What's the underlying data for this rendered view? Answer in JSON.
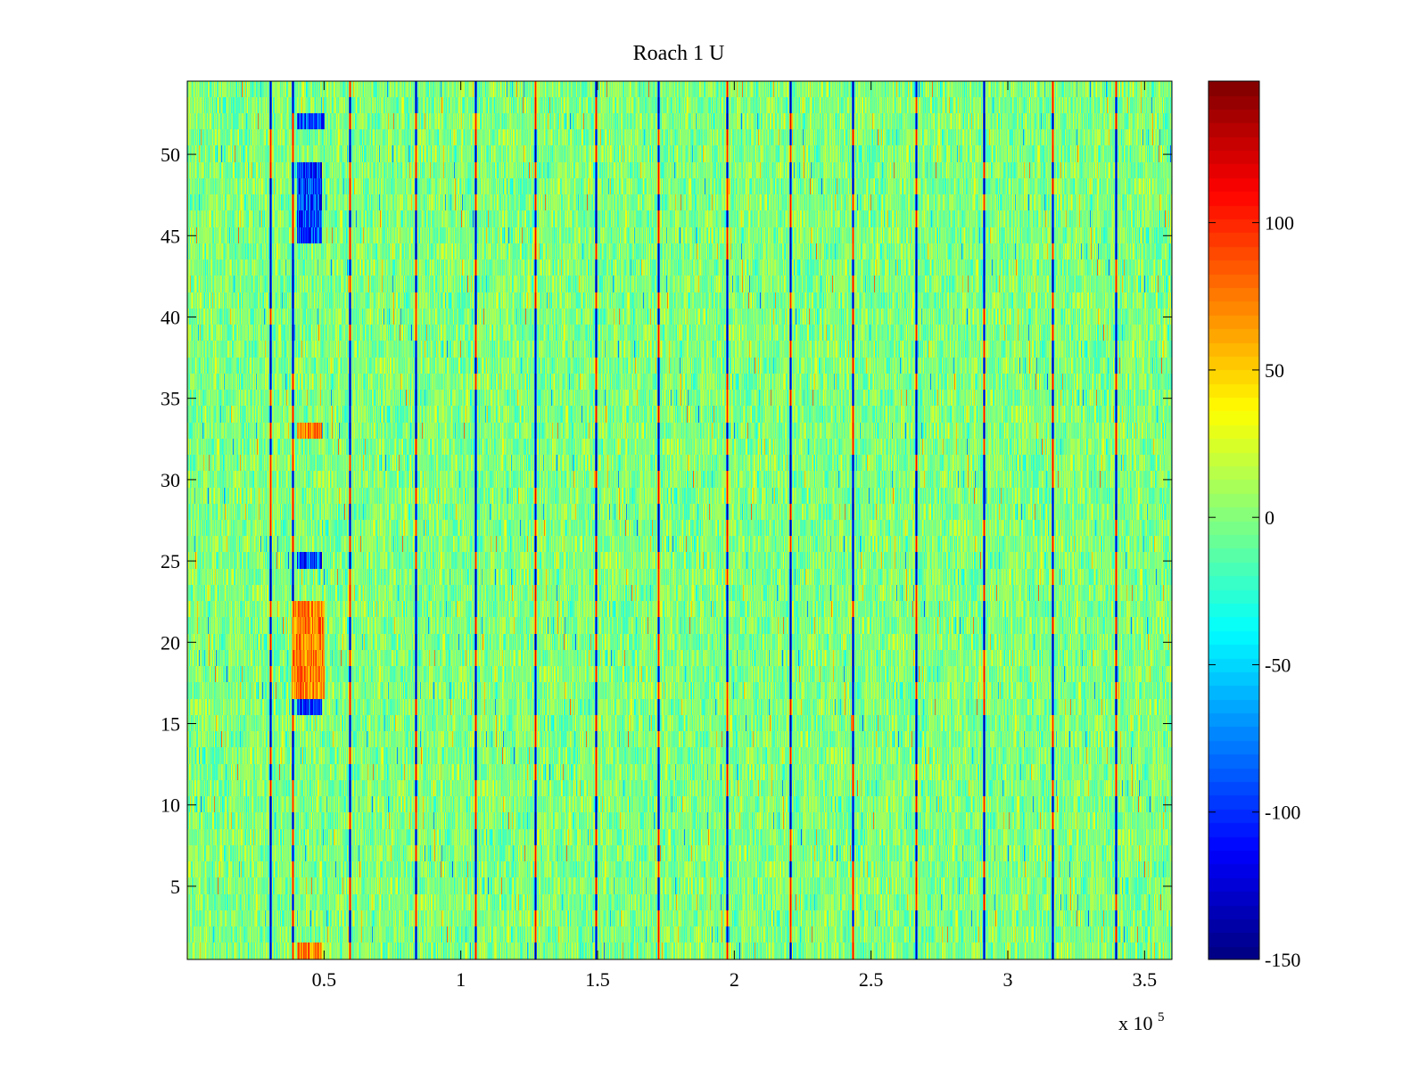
{
  "chart_data": {
    "type": "heatmap",
    "title": "Roach 1 U",
    "xlabel": "",
    "ylabel": "",
    "x_exponent_label": "x 10",
    "x_exponent_power": "5",
    "xlim": [
      0,
      3.6
    ],
    "ylim": [
      0.5,
      54.5
    ],
    "x_ticks": [
      0.5,
      1,
      1.5,
      2,
      2.5,
      3,
      3.5
    ],
    "x_tick_labels": [
      "0.5",
      "1",
      "1.5",
      "2",
      "2.5",
      "3",
      "3.5"
    ],
    "y_ticks": [
      5,
      10,
      15,
      20,
      25,
      30,
      35,
      40,
      45,
      50
    ],
    "y_tick_labels": [
      "5",
      "10",
      "15",
      "20",
      "25",
      "30",
      "35",
      "40",
      "45",
      "50"
    ],
    "rows": 54,
    "colormap": "jet",
    "clim": [
      -150,
      148
    ],
    "colorbar_ticks": [
      100,
      50,
      0,
      -50,
      -100,
      -150
    ],
    "colorbar_tick_labels": [
      "100",
      "50",
      "0",
      "-50",
      "-100",
      "-150"
    ],
    "background_value_range": [
      -35,
      35
    ],
    "periodic_features_x": [
      0.3,
      0.38,
      0.59,
      0.83,
      1.05,
      1.27,
      1.49,
      1.72,
      1.97,
      2.2,
      2.43,
      2.66,
      2.91,
      3.16,
      3.39
    ],
    "dark_anomaly_blocks": [
      {
        "x_range": [
          0.4,
          0.5
        ],
        "rows": [
          52
        ]
      },
      {
        "x_range": [
          0.4,
          0.49
        ],
        "rows": [
          45,
          46,
          47,
          48,
          49
        ]
      },
      {
        "x_range": [
          0.4,
          0.49
        ],
        "rows": [
          16,
          25
        ]
      }
    ],
    "warm_anomaly_blocks": [
      {
        "x_range": [
          0.4,
          0.49
        ],
        "rows": [
          33,
          1
        ]
      },
      {
        "x_range": [
          0.38,
          0.5
        ],
        "rows": [
          17,
          18,
          19,
          20,
          21,
          22
        ]
      }
    ]
  }
}
